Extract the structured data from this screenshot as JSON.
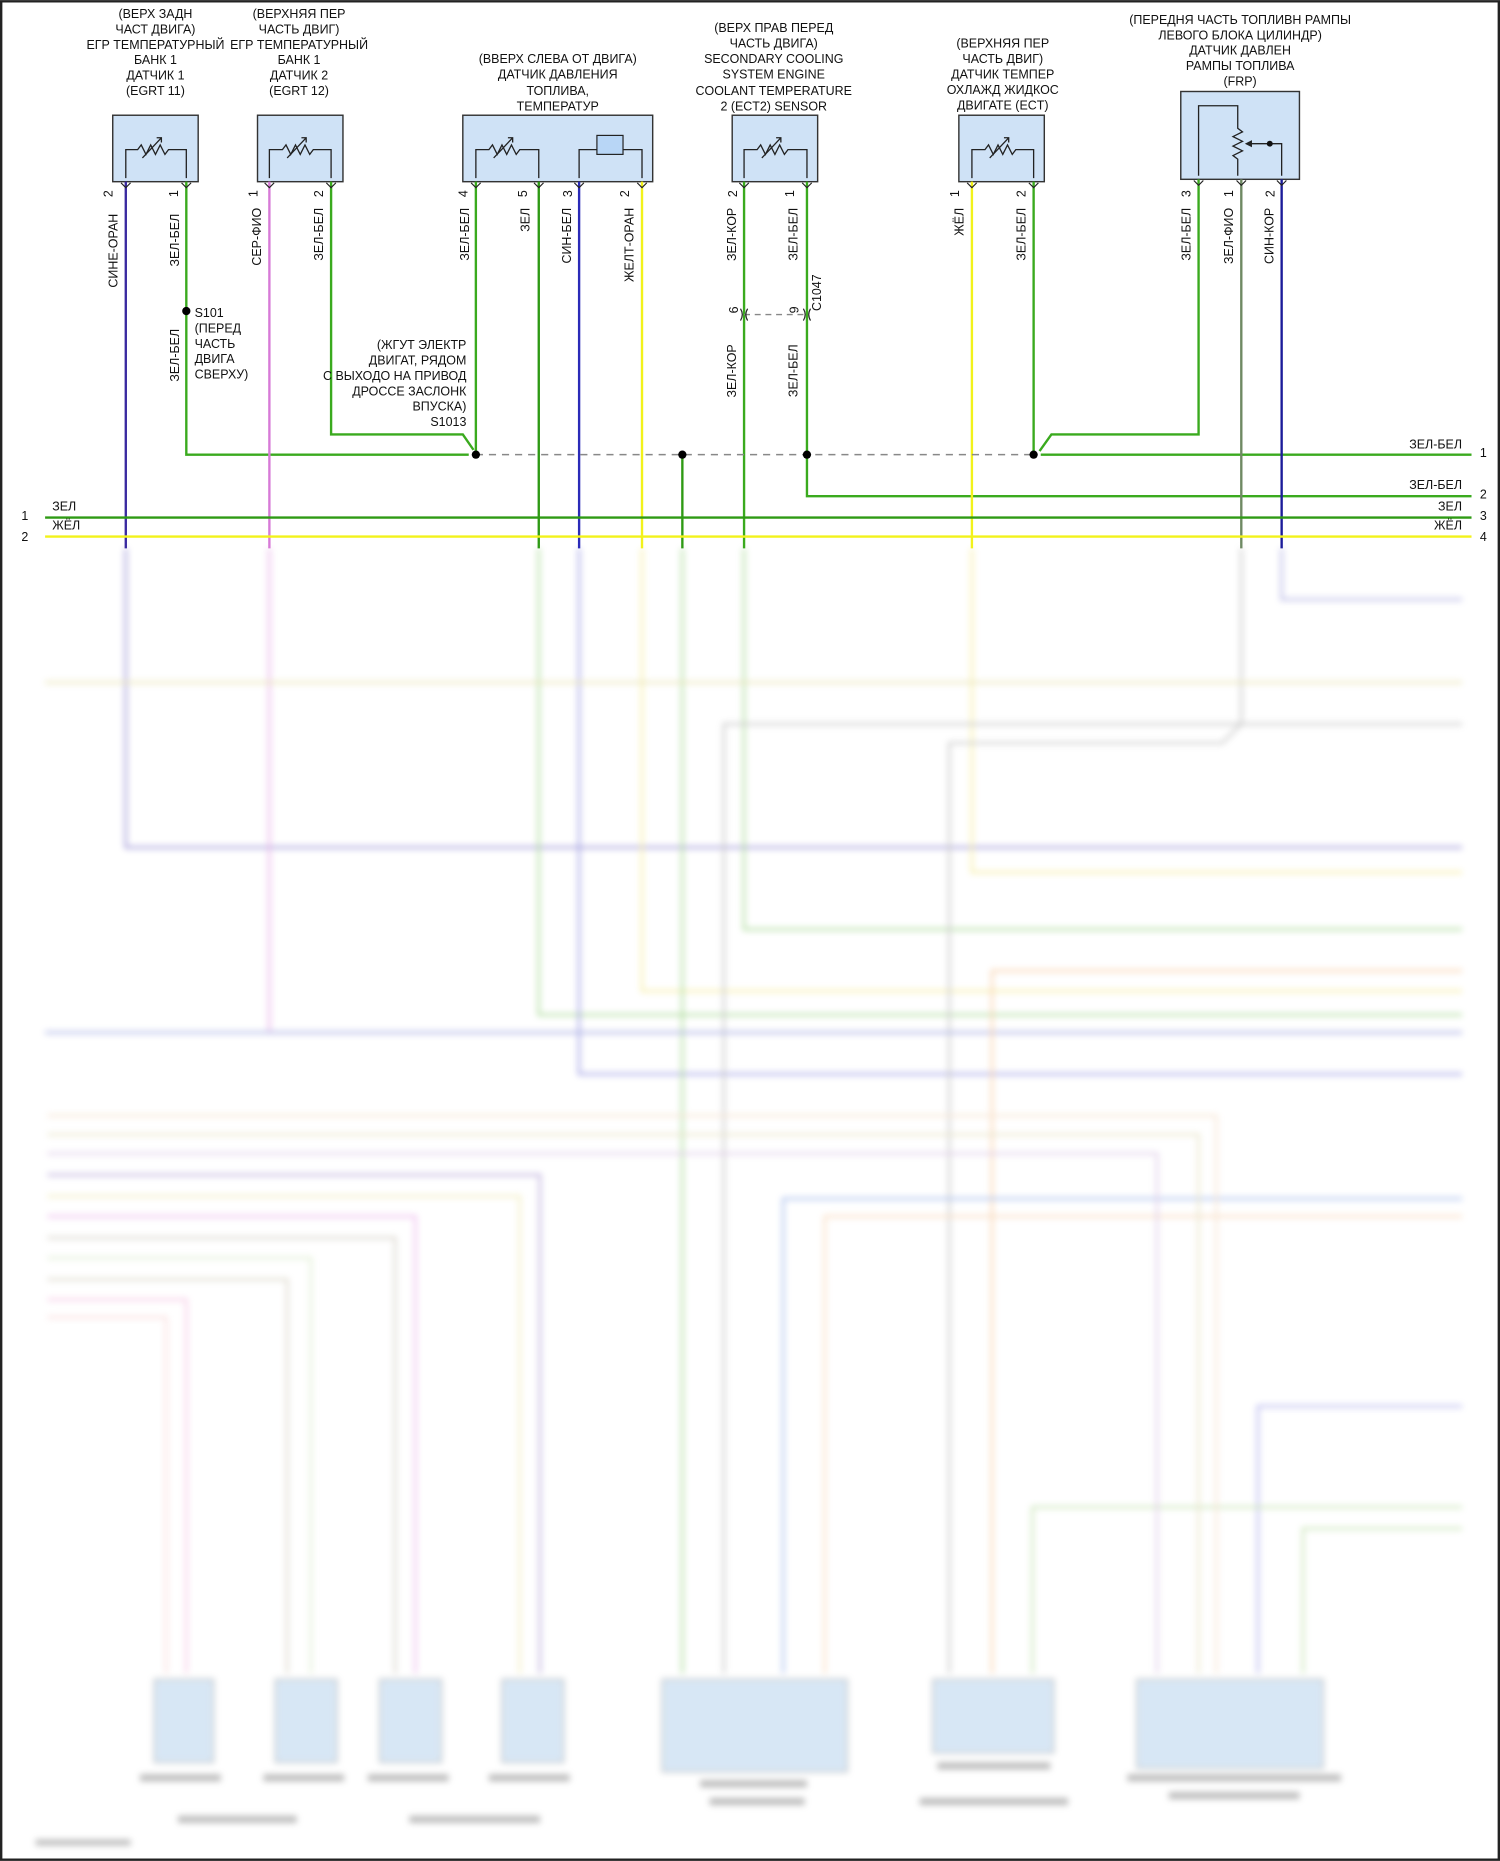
{
  "components": [
    {
      "caption": [
        "(ВЕРХ ЗАДН",
        "ЧАСТ ДВИГА)",
        "ЕГР ТЕМПЕРАТУРНЫЙ",
        "БАНК 1",
        "ДАТЧИК 1",
        "(EGRT 11)"
      ],
      "pins": [
        {
          "num": "2",
          "wire": "СИНЕ-ОРАН"
        },
        {
          "num": "1",
          "wire": "ЗЕЛ-БЕЛ"
        }
      ]
    },
    {
      "caption": [
        "(ВЕРХНЯЯ ПЕР",
        "ЧАСТЬ ДВИГ)",
        "ЕГР ТЕМПЕРАТУРНЫЙ",
        "БАНК 1",
        "ДАТЧИК 2",
        "(EGRT 12)"
      ],
      "pins": [
        {
          "num": "1",
          "wire": "СЕР-ФИО"
        },
        {
          "num": "2",
          "wire": "ЗЕЛ-БЕЛ"
        }
      ]
    },
    {
      "caption": [
        "(ВВЕРХ СЛЕВА ОТ ДВИГА)",
        "ДАТЧИК ДАВЛЕНИЯ",
        "ТОПЛИВА,",
        "ТЕМПЕРАТУР"
      ],
      "pins": [
        {
          "num": "4",
          "wire": "ЗЕЛ-БЕЛ"
        },
        {
          "num": "5",
          "wire": "ЗЕЛ"
        },
        {
          "num": "3",
          "wire": "СИН-БЕЛ"
        },
        {
          "num": "2",
          "wire": "ЖЕЛТ-ОРАН"
        }
      ]
    },
    {
      "caption": [
        "(ВЕРХ ПРАВ ПЕРЕД",
        "ЧАСТЬ ДВИГА)",
        "SECONDARY COOLING",
        "SYSTEM ENGINE",
        "COOLANT TEMPERATURE",
        "2 (ECT2) SENSOR"
      ],
      "pins": [
        {
          "num": "2",
          "wire": "ЗЕЛ-КОР"
        },
        {
          "num": "1",
          "wire": "ЗЕЛ-БЕЛ"
        }
      ]
    },
    {
      "caption": [
        "(ВЕРХНЯЯ ПЕР",
        "ЧАСТЬ ДВИГ)",
        "ДАТЧИК ТЕМПЕР",
        "ОХЛАЖД ЖИДКОС",
        "ДВИГАТЕ (ECT)"
      ],
      "pins": [
        {
          "num": "1",
          "wire": "ЖЁЛ"
        },
        {
          "num": "2",
          "wire": "ЗЕЛ-БЕЛ"
        }
      ]
    },
    {
      "caption": [
        "(ПЕРЕДНЯ ЧАСТЬ ТОПЛИВН РАМПЫ",
        "ЛЕВОГО БЛОКА ЦИЛИНДР)",
        "ДАТЧИК ДАВЛЕН",
        "РАМПЫ ТОПЛИВА",
        "(FRP)"
      ],
      "pins": [
        {
          "num": "3",
          "wire": "ЗЕЛ-БЕЛ"
        },
        {
          "num": "1",
          "wire": "ЗЕЛ-ФИО"
        },
        {
          "num": "2",
          "wire": "СИН-КОР"
        }
      ]
    }
  ],
  "connector_c1047": {
    "name": "C1047",
    "pins": [
      "6",
      "9"
    ],
    "wires_below": [
      "ЗЕЛ-КОР",
      "ЗЕЛ-БЕЛ"
    ]
  },
  "splice_s101": {
    "lines": [
      "S101",
      "(ПЕРЕД",
      "ЧАСТЬ",
      "ДВИГА",
      "СВЕРХУ)"
    ],
    "wire_below": "ЗЕЛ-БЕЛ"
  },
  "splice_s1013": {
    "lines": [
      "(ЖГУТ ЭЛЕКТР",
      "ДВИГАТ, РЯДОМ",
      "С ВЫХОДО НА ПРИВОД",
      "ДРОССЕ ЗАСЛОНК",
      "ВПУСКА)",
      "S1013"
    ]
  },
  "left_bus": [
    {
      "num": "1",
      "wire": "ЗЕЛ"
    },
    {
      "num": "2",
      "wire": "ЖЁЛ"
    }
  ],
  "right_outputs": [
    {
      "num": "1",
      "wire": "ЗЕЛ-БЕЛ"
    },
    {
      "num": "2",
      "wire": "ЗЕЛ-БЕЛ"
    },
    {
      "num": "3",
      "wire": "ЗЕЛ"
    },
    {
      "num": "4",
      "wire": "ЖЁЛ"
    }
  ],
  "colors": {
    "green": "#3aaa1e",
    "green_dark": "#2e9a14",
    "purple_blue": "#3a2aa0",
    "pink": "#d77ad7",
    "blue": "#2a2ab8",
    "yellow": "#f2f21a",
    "grey_green": "#6f8a63",
    "navy": "#1c1c9a",
    "box_fill": "#cfe2f6"
  }
}
